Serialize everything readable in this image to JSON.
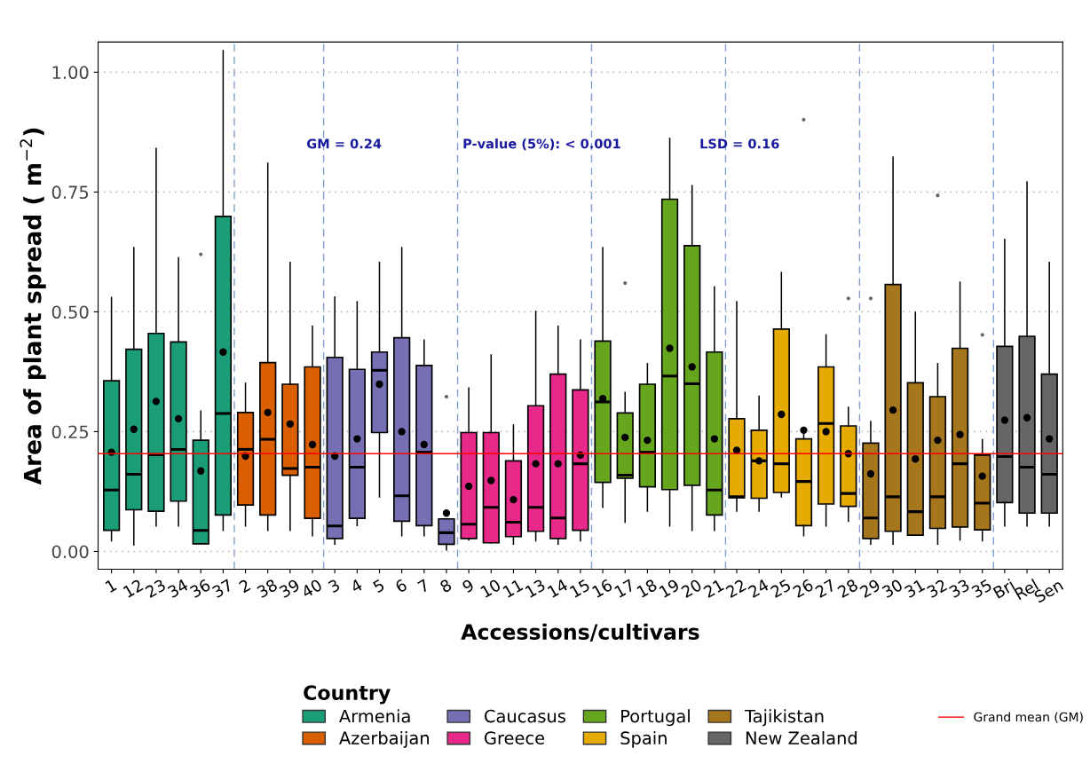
{
  "chart_data": {
    "type": "box",
    "ylabel": "Area of plant spread ( m$^{−2}$)",
    "xlabel": "Accessions/cultivars",
    "legend_title": "Country",
    "annotations": [
      "GM = 0.24",
      "P-value (5%): < 0.001",
      "LSD = 0.16"
    ],
    "categories": [
      "1",
      "12",
      "23",
      "34",
      "36",
      "37",
      "2",
      "38",
      "39",
      "40",
      "3",
      "4",
      "5",
      "6",
      "7",
      "8",
      "9",
      "10",
      "11",
      "13",
      "14",
      "15",
      "16",
      "17",
      "18",
      "19",
      "20",
      "21",
      "22",
      "24",
      "25",
      "26",
      "27",
      "28",
      "29",
      "30",
      "31",
      "32",
      "33",
      "35",
      "Bri",
      "Rel",
      "Sen"
    ],
    "ylim": [
      -0.037,
      1.063
    ],
    "yticks": [
      {
        "value": 0,
        "label": "0.00"
      },
      {
        "value": 0.25,
        "label": "0.25"
      },
      {
        "value": 0.5,
        "label": "0.50"
      },
      {
        "value": 0.75,
        "label": "0.75"
      },
      {
        "value": 1,
        "label": "1.00"
      }
    ],
    "grid": "y",
    "legend": "bottom",
    "ref_lines": [
      {
        "axis": "y",
        "value": 0.204,
        "label": "Grand mean (GM)",
        "color": "#ff0000"
      }
    ],
    "series": [
      {
        "name": "Armenia",
        "color": "#1b9e77",
        "boxes": [
          {
            "low": 0.022,
            "q1": 0.044,
            "median": 0.128,
            "q3": 0.356,
            "high": 0.53,
            "mean": 0.207
          },
          {
            "low": 0.014,
            "q1": 0.087,
            "median": 0.161,
            "q3": 0.422,
            "high": 0.634,
            "mean": 0.255
          },
          {
            "low": 0.053,
            "q1": 0.084,
            "median": 0.202,
            "q3": 0.455,
            "high": 0.841,
            "mean": 0.313
          },
          {
            "low": 0.053,
            "q1": 0.105,
            "median": 0.213,
            "q3": 0.437,
            "high": 0.613,
            "mean": 0.277
          },
          {
            "low": 0.016,
            "q1": 0.016,
            "median": 0.044,
            "q3": 0.232,
            "high": 0.293,
            "mean": 0.168,
            "outliers": [
              0.62
            ]
          },
          {
            "low": 0.044,
            "q1": 0.076,
            "median": 0.288,
            "q3": 0.699,
            "high": 1.045,
            "mean": 0.416
          },
          null,
          null,
          null,
          null,
          null,
          null,
          null,
          null,
          null,
          null,
          null,
          null,
          null,
          null,
          null,
          null,
          null,
          null,
          null,
          null,
          null,
          null,
          null,
          null,
          null,
          null,
          null,
          null,
          null,
          null,
          null,
          null,
          null,
          null,
          null,
          null,
          null
        ]
      },
      {
        "name": "Azerbaijan",
        "color": "#d95f02",
        "boxes": [
          null,
          null,
          null,
          null,
          null,
          null,
          {
            "low": 0.053,
            "q1": 0.097,
            "median": 0.213,
            "q3": 0.29,
            "high": 0.351,
            "mean": 0.199
          },
          {
            "low": 0.044,
            "q1": 0.076,
            "median": 0.234,
            "q3": 0.394,
            "high": 0.81,
            "mean": 0.29
          },
          {
            "low": 0.044,
            "q1": 0.159,
            "median": 0.173,
            "q3": 0.349,
            "high": 0.603,
            "mean": 0.266
          },
          {
            "low": 0.033,
            "q1": 0.069,
            "median": 0.176,
            "q3": 0.385,
            "high": 0.47,
            "mean": 0.223
          },
          null,
          null,
          null,
          null,
          null,
          null,
          null,
          null,
          null,
          null,
          null,
          null,
          null,
          null,
          null,
          null,
          null,
          null,
          null,
          null,
          null,
          null,
          null,
          null,
          null,
          null,
          null,
          null,
          null,
          null,
          null,
          null,
          null
        ]
      },
      {
        "name": "Caucasus",
        "color": "#7570b3",
        "boxes": [
          null,
          null,
          null,
          null,
          null,
          null,
          null,
          null,
          null,
          null,
          {
            "low": 0.015,
            "q1": 0.027,
            "median": 0.053,
            "q3": 0.405,
            "high": 0.531,
            "mean": 0.199
          },
          {
            "low": 0.054,
            "q1": 0.069,
            "median": 0.176,
            "q3": 0.38,
            "high": 0.521,
            "mean": 0.235
          },
          {
            "low": 0.114,
            "q1": 0.248,
            "median": 0.378,
            "q3": 0.416,
            "high": 0.603,
            "mean": 0.349
          },
          {
            "low": 0.033,
            "q1": 0.063,
            "median": 0.116,
            "q3": 0.446,
            "high": 0.634,
            "mean": 0.25
          },
          {
            "low": 0.033,
            "q1": 0.054,
            "median": 0.207,
            "q3": 0.388,
            "high": 0.441,
            "mean": 0.223
          },
          {
            "low": 0.003,
            "q1": 0.015,
            "median": 0.039,
            "q3": 0.068,
            "high": 0.068,
            "mean": 0.08,
            "outliers": [
              0.323
            ]
          },
          null,
          null,
          null,
          null,
          null,
          null,
          null,
          null,
          null,
          null,
          null,
          null,
          null,
          null,
          null,
          null,
          null,
          null,
          null,
          null,
          null,
          null,
          null,
          null,
          null,
          null,
          null
        ]
      },
      {
        "name": "Greece",
        "color": "#e7298a",
        "boxes": [
          null,
          null,
          null,
          null,
          null,
          null,
          null,
          null,
          null,
          null,
          null,
          null,
          null,
          null,
          null,
          null,
          {
            "low": 0.024,
            "q1": 0.027,
            "median": 0.057,
            "q3": 0.248,
            "high": 0.341,
            "mean": 0.136
          },
          {
            "low": 0.018,
            "q1": 0.018,
            "median": 0.092,
            "q3": 0.248,
            "high": 0.41,
            "mean": 0.148
          },
          {
            "low": 0.015,
            "q1": 0.031,
            "median": 0.061,
            "q3": 0.189,
            "high": 0.264,
            "mean": 0.108
          },
          {
            "low": 0.022,
            "q1": 0.042,
            "median": 0.092,
            "q3": 0.304,
            "high": 0.501,
            "mean": 0.183
          },
          {
            "low": 0.015,
            "q1": 0.027,
            "median": 0.07,
            "q3": 0.37,
            "high": 0.47,
            "mean": 0.183
          },
          {
            "low": 0.022,
            "q1": 0.044,
            "median": 0.183,
            "q3": 0.337,
            "high": 0.441,
            "mean": 0.201
          },
          null,
          null,
          null,
          null,
          null,
          null,
          null,
          null,
          null,
          null,
          null,
          null,
          null,
          null,
          null,
          null,
          null,
          null,
          null,
          null,
          null
        ]
      },
      {
        "name": "Portugal",
        "color": "#66a61e",
        "boxes": [
          null,
          null,
          null,
          null,
          null,
          null,
          null,
          null,
          null,
          null,
          null,
          null,
          null,
          null,
          null,
          null,
          null,
          null,
          null,
          null,
          null,
          null,
          {
            "low": 0.092,
            "q1": 0.144,
            "median": 0.312,
            "q3": 0.439,
            "high": 0.634,
            "mean": 0.319
          },
          {
            "low": 0.061,
            "q1": 0.153,
            "median": 0.159,
            "q3": 0.289,
            "high": 0.332,
            "mean": 0.238,
            "outliers": [
              0.56
            ]
          },
          {
            "low": 0.084,
            "q1": 0.135,
            "median": 0.207,
            "q3": 0.349,
            "high": 0.392,
            "mean": 0.232
          },
          {
            "low": 0.053,
            "q1": 0.129,
            "median": 0.366,
            "q3": 0.735,
            "high": 0.862,
            "mean": 0.424
          },
          {
            "low": 0.044,
            "q1": 0.138,
            "median": 0.35,
            "q3": 0.638,
            "high": 0.763,
            "mean": 0.385
          },
          {
            "low": 0.044,
            "q1": 0.076,
            "median": 0.128,
            "q3": 0.416,
            "high": 0.552,
            "mean": 0.235
          },
          null,
          null,
          null,
          null,
          null,
          null,
          null,
          null,
          null,
          null,
          null,
          null,
          null,
          null,
          null
        ]
      },
      {
        "name": "Spain",
        "color": "#e6ab02",
        "boxes": [
          null,
          null,
          null,
          null,
          null,
          null,
          null,
          null,
          null,
          null,
          null,
          null,
          null,
          null,
          null,
          null,
          null,
          null,
          null,
          null,
          null,
          null,
          null,
          null,
          null,
          null,
          null,
          null,
          {
            "low": 0.084,
            "q1": 0.112,
            "median": 0.114,
            "q3": 0.277,
            "high": 0.521,
            "mean": 0.211
          },
          {
            "low": 0.084,
            "q1": 0.111,
            "median": 0.189,
            "q3": 0.253,
            "high": 0.324,
            "mean": 0.189
          },
          {
            "low": 0.114,
            "q1": 0.123,
            "median": 0.183,
            "q3": 0.464,
            "high": 0.582,
            "mean": 0.286
          },
          {
            "low": 0.033,
            "q1": 0.054,
            "median": 0.146,
            "q3": 0.235,
            "high": 0.259,
            "mean": 0.253,
            "outliers": [
              0.901
            ]
          },
          {
            "low": 0.053,
            "q1": 0.099,
            "median": 0.267,
            "q3": 0.385,
            "high": 0.452,
            "mean": 0.25
          },
          {
            "low": 0.063,
            "q1": 0.094,
            "median": 0.121,
            "q3": 0.262,
            "high": 0.301,
            "mean": 0.204,
            "outliers": [
              0.528
            ]
          },
          null,
          null,
          null,
          null,
          null,
          null,
          null,
          null,
          null
        ]
      },
      {
        "name": "Tajikistan",
        "color": "#a6761d",
        "boxes": [
          null,
          null,
          null,
          null,
          null,
          null,
          null,
          null,
          null,
          null,
          null,
          null,
          null,
          null,
          null,
          null,
          null,
          null,
          null,
          null,
          null,
          null,
          null,
          null,
          null,
          null,
          null,
          null,
          null,
          null,
          null,
          null,
          null,
          null,
          {
            "low": 0.015,
            "q1": 0.027,
            "median": 0.07,
            "q3": 0.226,
            "high": 0.271,
            "mean": 0.162,
            "outliers": [
              0.528
            ]
          },
          {
            "low": 0.015,
            "q1": 0.042,
            "median": 0.114,
            "q3": 0.557,
            "high": 0.823,
            "mean": 0.295
          },
          {
            "low": 0.034,
            "q1": 0.034,
            "median": 0.083,
            "q3": 0.352,
            "high": 0.499,
            "mean": 0.193
          },
          {
            "low": 0.015,
            "q1": 0.048,
            "median": 0.114,
            "q3": 0.323,
            "high": 0.392,
            "mean": 0.232,
            "outliers": [
              0.743
            ]
          },
          {
            "low": 0.024,
            "q1": 0.051,
            "median": 0.183,
            "q3": 0.424,
            "high": 0.562,
            "mean": 0.244
          },
          {
            "low": 0.022,
            "q1": 0.045,
            "median": 0.101,
            "q3": 0.201,
            "high": 0.233,
            "mean": 0.157,
            "outliers": [
              0.452
            ]
          },
          null,
          null,
          null
        ]
      },
      {
        "name": "New Zealand",
        "color": "#666666",
        "boxes": [
          null,
          null,
          null,
          null,
          null,
          null,
          null,
          null,
          null,
          null,
          null,
          null,
          null,
          null,
          null,
          null,
          null,
          null,
          null,
          null,
          null,
          null,
          null,
          null,
          null,
          null,
          null,
          null,
          null,
          null,
          null,
          null,
          null,
          null,
          null,
          null,
          null,
          null,
          null,
          null,
          {
            "low": 0.053,
            "q1": 0.102,
            "median": 0.198,
            "q3": 0.428,
            "high": 0.651,
            "mean": 0.274
          },
          {
            "low": 0.053,
            "q1": 0.08,
            "median": 0.176,
            "q3": 0.449,
            "high": 0.771,
            "mean": 0.279
          },
          {
            "low": 0.053,
            "q1": 0.08,
            "median": 0.161,
            "q3": 0.37,
            "high": 0.603,
            "mean": 0.235
          }
        ]
      }
    ]
  }
}
